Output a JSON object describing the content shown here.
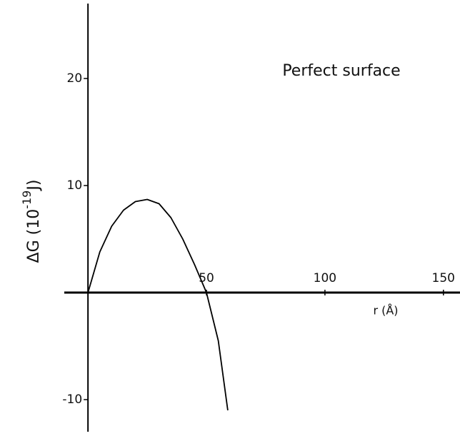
{
  "chart_data": {
    "type": "line",
    "annotation": "Perfect surface",
    "x_label": "r (Å)",
    "y_label": {
      "text": "ΔG (10",
      "superscript": "-19",
      "suffix": "J)"
    },
    "x": [
      0,
      5,
      10,
      15,
      20,
      25,
      30,
      35,
      40,
      45,
      50,
      55,
      59
    ],
    "values": [
      0,
      3.8,
      6.2,
      7.7,
      8.5,
      8.7,
      8.3,
      7.0,
      5.0,
      2.6,
      0,
      -4.5,
      -11
    ],
    "color": "#000000",
    "xlim": [
      -10,
      157
    ],
    "ylim": [
      -13,
      27
    ],
    "xticks": [
      50,
      100,
      150
    ],
    "yticks": [
      -10,
      10,
      20
    ]
  }
}
